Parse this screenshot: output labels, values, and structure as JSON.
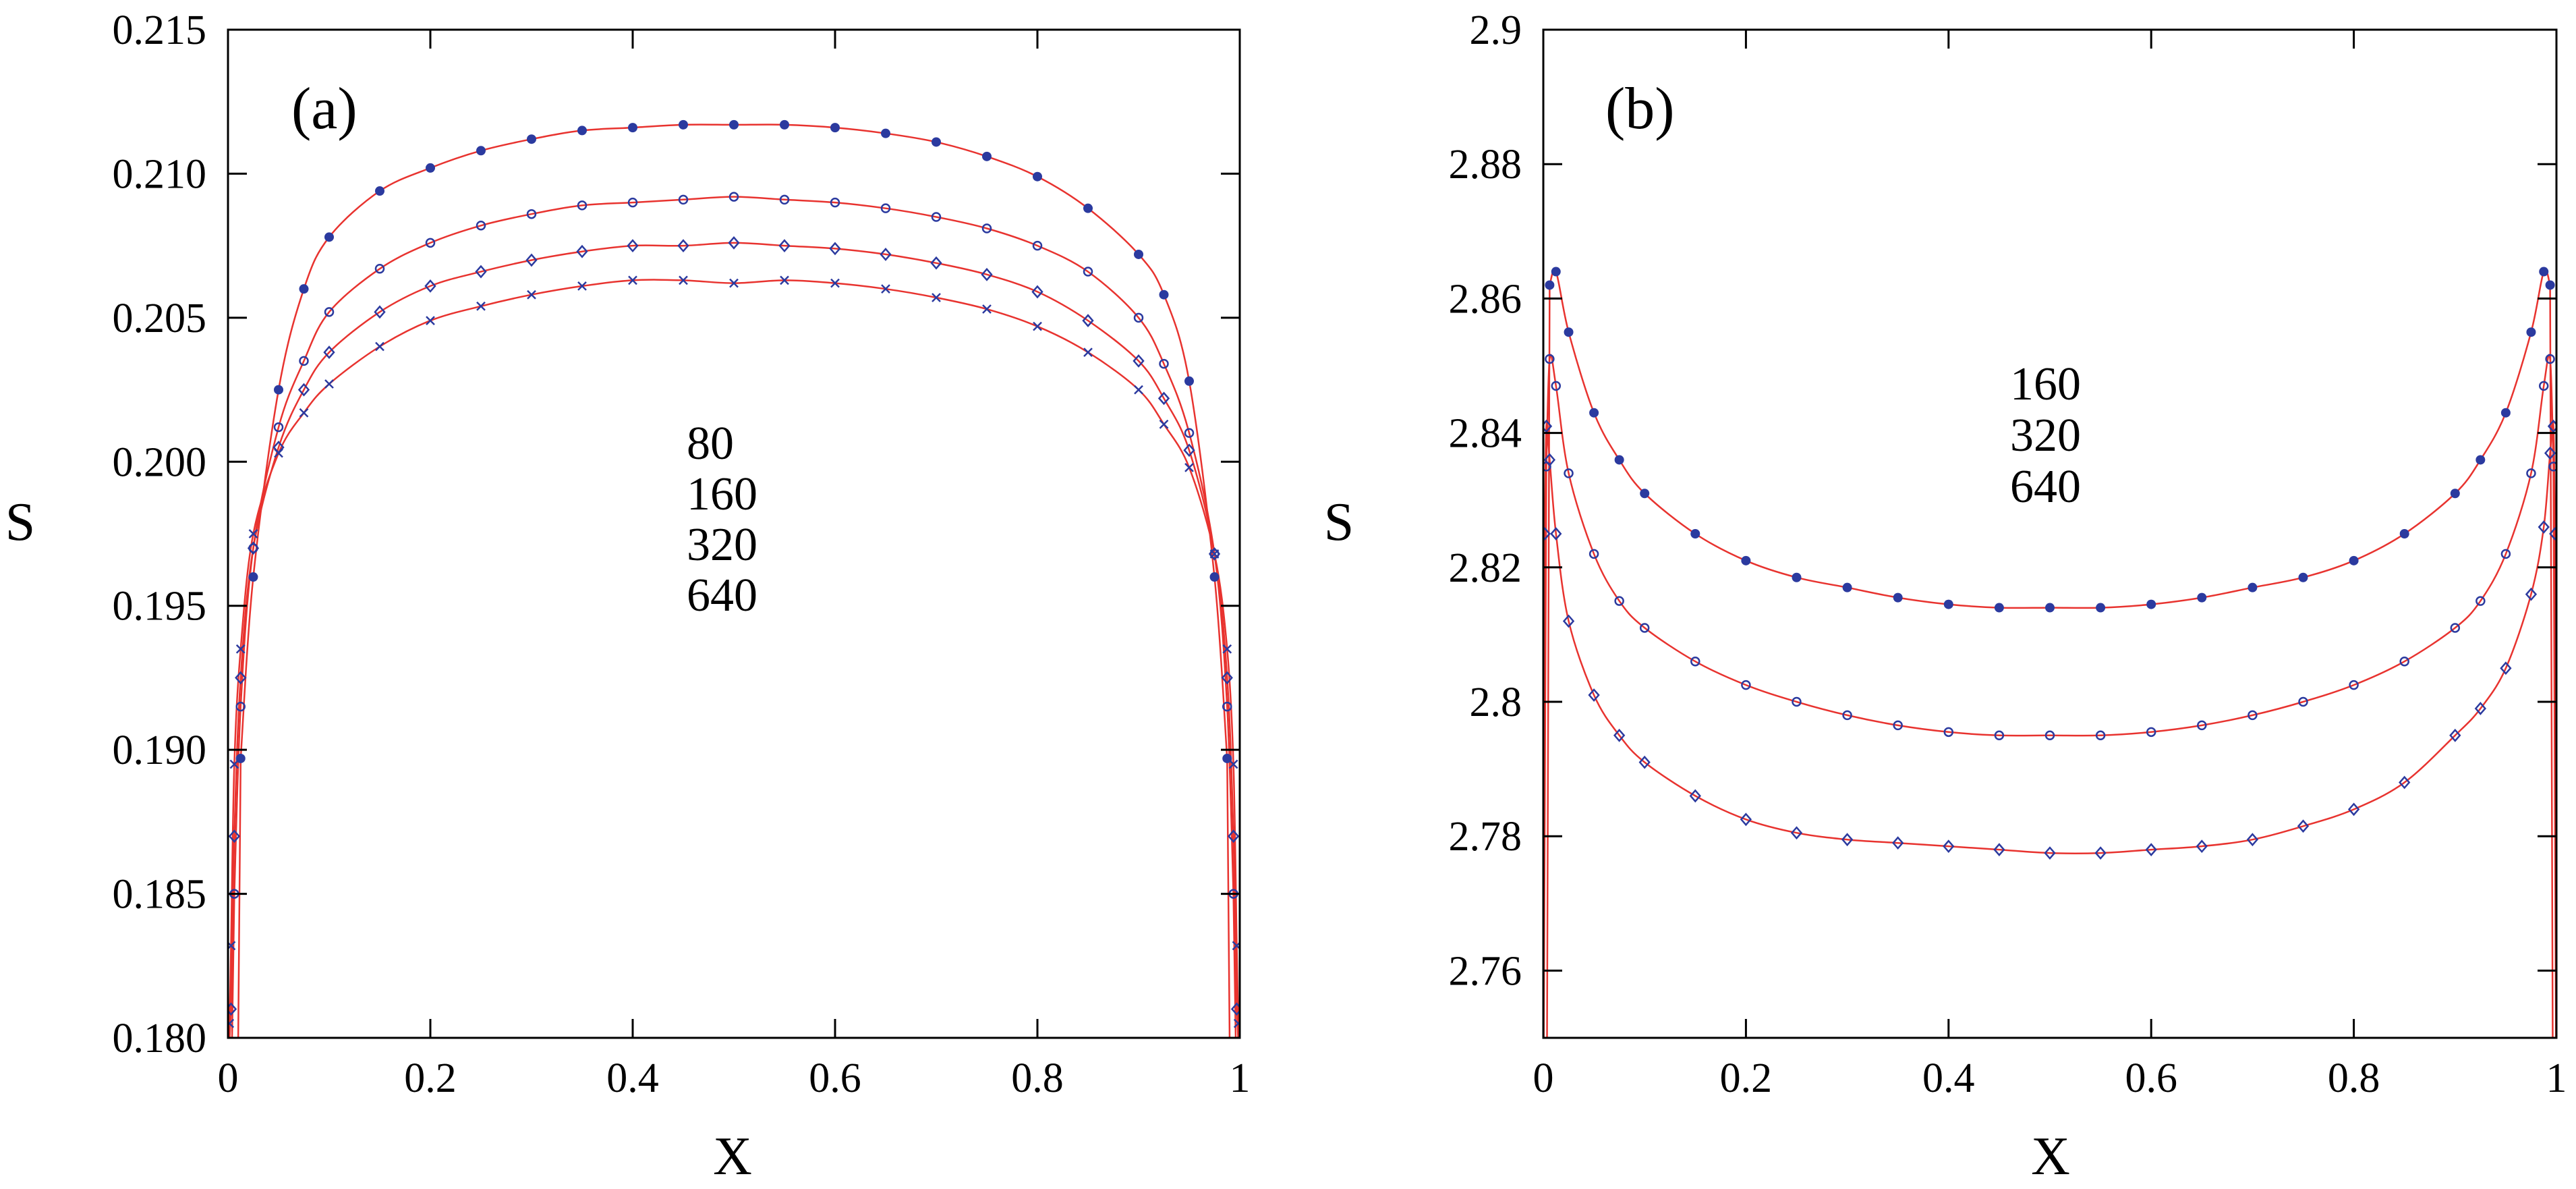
{
  "colors": {
    "marker": "#2b3a9f",
    "fit": "#e8332f",
    "axis": "#000000"
  },
  "chart_data": [
    {
      "type": "scatter",
      "panel_label": "(a)",
      "xlabel": "X",
      "ylabel": "S",
      "xlim": [
        0,
        1
      ],
      "ylim": [
        0.18,
        0.215
      ],
      "xticks": [
        0,
        0.2,
        0.4,
        0.6,
        0.8,
        1
      ],
      "xtick_labels": [
        "0",
        "0.2",
        "0.4",
        "0.6",
        "0.8",
        "1"
      ],
      "yticks": [
        0.18,
        0.185,
        0.19,
        0.195,
        0.2,
        0.205,
        0.21,
        0.215
      ],
      "ytick_labels": [
        "0.180",
        "0.185",
        "0.190",
        "0.195",
        "0.200",
        "0.205",
        "0.210",
        "0.215"
      ],
      "legend_labels": [
        "80",
        "160",
        "320",
        "640"
      ],
      "legend_position": "center",
      "grid": false,
      "fit_color": "red",
      "series": [
        {
          "name": "80",
          "marker": "filled-circle",
          "x": [
            0.0125,
            0.025,
            0.05,
            0.075,
            0.1,
            0.15,
            0.2,
            0.25,
            0.3,
            0.35,
            0.4,
            0.45,
            0.5,
            0.55,
            0.6,
            0.65,
            0.7,
            0.75,
            0.8,
            0.85,
            0.9,
            0.925,
            0.95,
            0.975,
            0.9875
          ],
          "y": [
            0.1897,
            0.196,
            0.2025,
            0.206,
            0.2078,
            0.2094,
            0.2102,
            0.2108,
            0.2112,
            0.2115,
            0.2116,
            0.2117,
            0.2117,
            0.2117,
            0.2116,
            0.2114,
            0.2111,
            0.2106,
            0.2099,
            0.2088,
            0.2072,
            0.2058,
            0.2028,
            0.196,
            0.1897
          ]
        },
        {
          "name": "160",
          "marker": "open-circle",
          "x": [
            0.00625,
            0.0125,
            0.025,
            0.05,
            0.075,
            0.1,
            0.15,
            0.2,
            0.25,
            0.3,
            0.35,
            0.4,
            0.45,
            0.5,
            0.55,
            0.6,
            0.65,
            0.7,
            0.75,
            0.8,
            0.85,
            0.9,
            0.925,
            0.95,
            0.975,
            0.9875,
            0.99375
          ],
          "y": [
            0.185,
            0.1915,
            0.197,
            0.2012,
            0.2035,
            0.2052,
            0.2067,
            0.2076,
            0.2082,
            0.2086,
            0.2089,
            0.209,
            0.2091,
            0.2092,
            0.2091,
            0.209,
            0.2088,
            0.2085,
            0.2081,
            0.2075,
            0.2066,
            0.205,
            0.2034,
            0.201,
            0.1968,
            0.1915,
            0.185
          ]
        },
        {
          "name": "320",
          "marker": "open-diamond",
          "x": [
            0.003,
            0.00625,
            0.0125,
            0.025,
            0.05,
            0.075,
            0.1,
            0.15,
            0.2,
            0.25,
            0.3,
            0.35,
            0.4,
            0.45,
            0.5,
            0.55,
            0.6,
            0.65,
            0.7,
            0.75,
            0.8,
            0.85,
            0.9,
            0.925,
            0.95,
            0.975,
            0.9875,
            0.99375,
            0.997
          ],
          "y": [
            0.181,
            0.187,
            0.1925,
            0.197,
            0.2005,
            0.2025,
            0.2038,
            0.2052,
            0.2061,
            0.2066,
            0.207,
            0.2073,
            0.2075,
            0.2075,
            0.2076,
            0.2075,
            0.2074,
            0.2072,
            0.2069,
            0.2065,
            0.2059,
            0.2049,
            0.2035,
            0.2022,
            0.2004,
            0.1968,
            0.1925,
            0.187,
            0.181
          ]
        },
        {
          "name": "640",
          "marker": "cross",
          "x": [
            0.0015,
            0.003,
            0.00625,
            0.0125,
            0.025,
            0.05,
            0.075,
            0.1,
            0.15,
            0.2,
            0.25,
            0.3,
            0.35,
            0.4,
            0.45,
            0.5,
            0.55,
            0.6,
            0.65,
            0.7,
            0.75,
            0.8,
            0.85,
            0.9,
            0.925,
            0.95,
            0.975,
            0.9875,
            0.99375,
            0.997,
            0.9985
          ],
          "y": [
            0.1805,
            0.1832,
            0.1895,
            0.1935,
            0.1975,
            0.2003,
            0.2017,
            0.2027,
            0.204,
            0.2049,
            0.2054,
            0.2058,
            0.2061,
            0.2063,
            0.2063,
            0.2062,
            0.2063,
            0.2062,
            0.206,
            0.2057,
            0.2053,
            0.2047,
            0.2038,
            0.2025,
            0.2013,
            0.1998,
            0.1968,
            0.1935,
            0.1895,
            0.1832,
            0.1805
          ]
        }
      ]
    },
    {
      "type": "scatter",
      "panel_label": "(b)",
      "xlabel": "X",
      "ylabel": "S",
      "xlim": [
        0,
        1
      ],
      "ylim": [
        2.75,
        2.9
      ],
      "xticks": [
        0,
        0.2,
        0.4,
        0.6,
        0.8,
        1
      ],
      "xtick_labels": [
        "0",
        "0.2",
        "0.4",
        "0.6",
        "0.8",
        "1"
      ],
      "yticks": [
        2.76,
        2.78,
        2.8,
        2.82,
        2.84,
        2.86,
        2.88,
        2.9
      ],
      "ytick_labels": [
        "2.76",
        "2.78",
        "2.8",
        "2.82",
        "2.84",
        "2.86",
        "2.88",
        "2.9"
      ],
      "legend_labels": [
        "160",
        "320",
        "640"
      ],
      "legend_position": "center-top",
      "grid": false,
      "fit_color": "red",
      "series": [
        {
          "name": "160",
          "marker": "filled-circle",
          "x": [
            0.00625,
            0.0125,
            0.025,
            0.05,
            0.075,
            0.1,
            0.15,
            0.2,
            0.25,
            0.3,
            0.35,
            0.4,
            0.45,
            0.5,
            0.55,
            0.6,
            0.65,
            0.7,
            0.75,
            0.8,
            0.85,
            0.9,
            0.925,
            0.95,
            0.975,
            0.9875,
            0.99375
          ],
          "y": [
            2.862,
            2.864,
            2.855,
            2.843,
            2.836,
            2.831,
            2.825,
            2.821,
            2.8185,
            2.817,
            2.8155,
            2.8145,
            2.814,
            2.814,
            2.814,
            2.8145,
            2.8155,
            2.817,
            2.8185,
            2.821,
            2.825,
            2.831,
            2.836,
            2.843,
            2.855,
            2.864,
            2.862
          ]
        },
        {
          "name": "320",
          "marker": "open-circle",
          "x": [
            0.003,
            0.00625,
            0.0125,
            0.025,
            0.05,
            0.075,
            0.1,
            0.15,
            0.2,
            0.25,
            0.3,
            0.35,
            0.4,
            0.45,
            0.5,
            0.55,
            0.6,
            0.65,
            0.7,
            0.75,
            0.8,
            0.85,
            0.9,
            0.925,
            0.95,
            0.975,
            0.9875,
            0.99375,
            0.997
          ],
          "y": [
            2.835,
            2.851,
            2.847,
            2.834,
            2.822,
            2.815,
            2.811,
            2.806,
            2.8025,
            2.8,
            2.798,
            2.7965,
            2.7955,
            2.795,
            2.795,
            2.795,
            2.7955,
            2.7965,
            2.798,
            2.8,
            2.8025,
            2.806,
            2.811,
            2.815,
            2.822,
            2.834,
            2.847,
            2.851,
            2.835
          ]
        },
        {
          "name": "640",
          "marker": "open-diamond",
          "x": [
            0.0015,
            0.003,
            0.00625,
            0.0125,
            0.025,
            0.05,
            0.075,
            0.1,
            0.15,
            0.2,
            0.25,
            0.3,
            0.35,
            0.4,
            0.45,
            0.5,
            0.55,
            0.6,
            0.65,
            0.7,
            0.75,
            0.8,
            0.85,
            0.9,
            0.925,
            0.95,
            0.975,
            0.9875,
            0.99375,
            0.997,
            0.9985
          ],
          "y": [
            2.825,
            2.841,
            2.836,
            2.825,
            2.812,
            2.801,
            2.795,
            2.791,
            2.786,
            2.7825,
            2.7805,
            2.7795,
            2.779,
            2.7785,
            2.778,
            2.7775,
            2.7775,
            2.778,
            2.7785,
            2.7795,
            2.7815,
            2.784,
            2.788,
            2.795,
            2.799,
            2.805,
            2.816,
            2.826,
            2.837,
            2.841,
            2.825
          ]
        }
      ]
    }
  ]
}
